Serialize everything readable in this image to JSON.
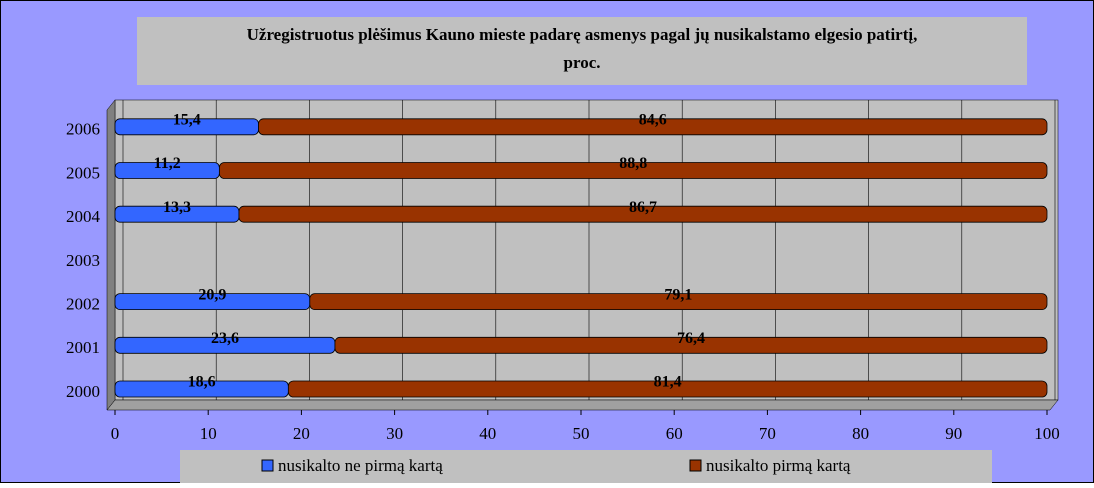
{
  "chart_data": {
    "type": "stacked-bar-horizontal",
    "title": "Užregistruotus plėšimus Kauno mieste padarę asmenys pagal jų nusikalstamo elgesio patirtį, proc.",
    "categories": [
      "2000",
      "2001",
      "2002",
      "2003",
      "2004",
      "2005",
      "2006"
    ],
    "series": [
      {
        "name": "nusikalto ne pirmą kartą",
        "color": "#3366ff",
        "values": [
          18.6,
          23.6,
          20.9,
          null,
          13.3,
          11.2,
          15.4
        ],
        "value_labels": [
          "18,6",
          "23,6",
          "20,9",
          null,
          "13,3",
          "11,2",
          "15,4"
        ]
      },
      {
        "name": "nusikalto pirmą kartą",
        "color": "#993300",
        "values": [
          81.4,
          76.4,
          79.1,
          null,
          86.7,
          88.8,
          84.6
        ],
        "value_labels": [
          "81,4",
          "76,4",
          "79,1",
          null,
          "86,7",
          "88,8",
          "84,6"
        ]
      }
    ],
    "xlim": [
      0,
      100
    ],
    "xticks": [
      0,
      10,
      20,
      30,
      40,
      50,
      60,
      70,
      80,
      90,
      100
    ],
    "grid": true
  }
}
